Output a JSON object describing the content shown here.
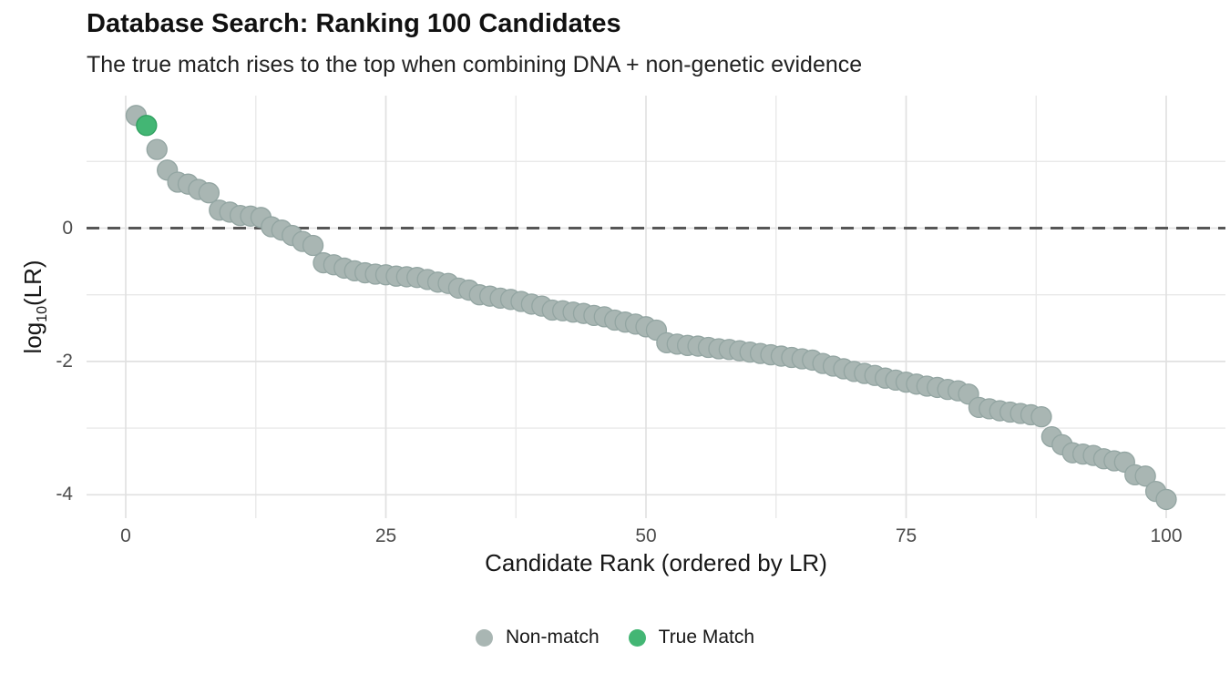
{
  "header": {
    "title": "Database Search: Ranking 100 Candidates",
    "subtitle": "The true match rises to the top when combining DNA + non-genetic evidence"
  },
  "chart_data": {
    "type": "scatter",
    "title": "Database Search: Ranking 100 Candidates",
    "subtitle": "The true match rises to the top when combining DNA + non-genetic evidence",
    "xlabel": "Candidate Rank (ordered by LR)",
    "ylabel": "log10(LR)",
    "ylabel_parts": {
      "prefix": "log",
      "subscript": "10",
      "suffix": "(LR)"
    },
    "xlim": [
      -3.8,
      105.7
    ],
    "ylim": [
      -4.35,
      2.0
    ],
    "grid": true,
    "legend_position": "bottom",
    "x_ticks": [
      0,
      25,
      50,
      75,
      100
    ],
    "x_tick_labels": [
      "0",
      "25",
      "50",
      "75",
      "100"
    ],
    "x_minor_ticks": [
      12.5,
      37.5,
      62.5,
      87.5
    ],
    "y_ticks": [
      0,
      -2,
      -4
    ],
    "y_tick_labels": [
      "0",
      "-2",
      "-4"
    ],
    "y_minor_ticks": [
      1,
      -1,
      -3
    ],
    "reference_line": {
      "y": 0,
      "style": "dashed",
      "color": "#565656"
    },
    "true_match_rank": 2,
    "x": [
      1,
      2,
      3,
      4,
      5,
      6,
      7,
      8,
      9,
      10,
      11,
      12,
      13,
      14,
      15,
      16,
      17,
      18,
      19,
      20,
      21,
      22,
      23,
      24,
      25,
      26,
      27,
      28,
      29,
      30,
      31,
      32,
      33,
      34,
      35,
      36,
      37,
      38,
      39,
      40,
      41,
      42,
      43,
      44,
      45,
      46,
      47,
      48,
      49,
      50,
      51,
      52,
      53,
      54,
      55,
      56,
      57,
      58,
      59,
      60,
      61,
      62,
      63,
      64,
      65,
      66,
      67,
      68,
      69,
      70,
      71,
      72,
      73,
      74,
      75,
      76,
      77,
      78,
      79,
      80,
      81,
      82,
      83,
      84,
      85,
      86,
      87,
      88,
      89,
      90,
      91,
      92,
      93,
      94,
      95,
      96,
      97,
      98,
      99,
      100
    ],
    "y": [
      1.69,
      1.54,
      1.18,
      0.87,
      0.69,
      0.66,
      0.58,
      0.53,
      0.27,
      0.24,
      0.19,
      0.18,
      0.16,
      0.02,
      -0.03,
      -0.11,
      -0.2,
      -0.26,
      -0.52,
      -0.55,
      -0.6,
      -0.64,
      -0.67,
      -0.69,
      -0.7,
      -0.72,
      -0.73,
      -0.74,
      -0.77,
      -0.81,
      -0.83,
      -0.9,
      -0.93,
      -1.0,
      -1.02,
      -1.05,
      -1.07,
      -1.1,
      -1.14,
      -1.17,
      -1.23,
      -1.24,
      -1.26,
      -1.28,
      -1.31,
      -1.33,
      -1.38,
      -1.41,
      -1.44,
      -1.48,
      -1.53,
      -1.72,
      -1.74,
      -1.76,
      -1.77,
      -1.79,
      -1.81,
      -1.82,
      -1.84,
      -1.86,
      -1.88,
      -1.9,
      -1.92,
      -1.94,
      -1.96,
      -1.98,
      -2.03,
      -2.07,
      -2.11,
      -2.15,
      -2.18,
      -2.21,
      -2.25,
      -2.28,
      -2.31,
      -2.34,
      -2.37,
      -2.39,
      -2.42,
      -2.44,
      -2.49,
      -2.69,
      -2.71,
      -2.74,
      -2.76,
      -2.78,
      -2.8,
      -2.83,
      -3.13,
      -3.25,
      -3.37,
      -3.39,
      -3.41,
      -3.46,
      -3.49,
      -3.51,
      -3.7,
      -3.72,
      -3.95,
      -4.07
    ],
    "series": [
      {
        "name": "Non-match",
        "color": "#a9b6b3",
        "stroke": "#93a5a2"
      },
      {
        "name": "True Match",
        "color": "#43b674",
        "stroke": "#2f9f5f"
      }
    ],
    "colors": {
      "grid_major": "#e1e1e1",
      "grid_minor": "#e9e9e9",
      "reference": "#565656",
      "axis_text": "#4d4d4d",
      "title_text": "#111111"
    }
  },
  "legend": {
    "items": [
      {
        "label": "Non-match",
        "color": "#a9b6b3"
      },
      {
        "label": "True Match",
        "color": "#43b674"
      }
    ]
  }
}
